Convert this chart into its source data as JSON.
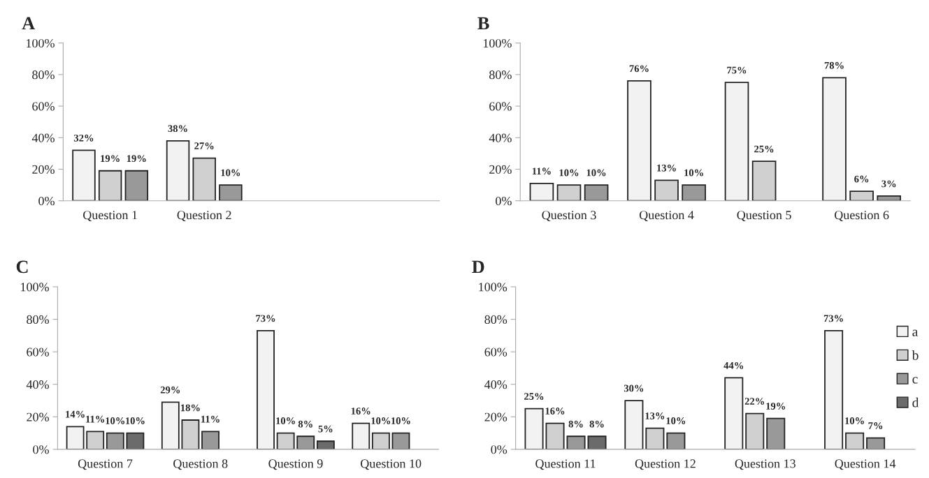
{
  "chart_data": [
    {
      "type": "bar",
      "title": "A",
      "categories": [
        "Question 1",
        "Question 2",
        null,
        null
      ],
      "ylim": [
        0,
        100
      ],
      "yticks": [
        {
          "value": 0,
          "label": "0%"
        },
        {
          "value": 20,
          "label": "20%"
        },
        {
          "value": 40,
          "label": "40%"
        },
        {
          "value": 60,
          "label": "60%"
        },
        {
          "value": 80,
          "label": "80%"
        },
        {
          "value": 100,
          "label": "100%"
        }
      ],
      "grid": false,
      "legend": false,
      "series": [
        {
          "color": "#f2f2f2",
          "values": [
            32,
            38,
            null,
            null
          ],
          "value_labels": [
            "32%",
            "38%",
            null,
            null
          ]
        },
        {
          "color": "#d0d0d0",
          "values": [
            19,
            27,
            null,
            null
          ],
          "value_labels": [
            "19%",
            "27%",
            null,
            null
          ]
        },
        {
          "color": "#999999",
          "values": [
            19,
            10,
            null,
            null
          ],
          "value_labels": [
            "19%",
            "10%",
            null,
            null
          ]
        }
      ]
    },
    {
      "type": "bar",
      "title": "B",
      "categories": [
        "Question 3",
        "Question 4",
        "Question 5",
        "Question 6"
      ],
      "ylim": [
        0,
        100
      ],
      "yticks": [
        {
          "value": 0,
          "label": "0%"
        },
        {
          "value": 20,
          "label": "20%"
        },
        {
          "value": 40,
          "label": "40%"
        },
        {
          "value": 60,
          "label": "60%"
        },
        {
          "value": 80,
          "label": "80%"
        },
        {
          "value": 100,
          "label": "100%"
        }
      ],
      "grid": false,
      "legend": false,
      "series": [
        {
          "color": "#f2f2f2",
          "values": [
            11,
            76,
            75,
            78
          ],
          "value_labels": [
            "11%",
            "76%",
            "75%",
            "78%"
          ]
        },
        {
          "color": "#d0d0d0",
          "values": [
            10,
            13,
            25,
            6
          ],
          "value_labels": [
            "10%",
            "13%",
            "25%",
            "6%"
          ]
        },
        {
          "color": "#999999",
          "values": [
            10,
            10,
            null,
            3
          ],
          "value_labels": [
            "10%",
            "10%",
            null,
            "3%"
          ]
        }
      ]
    },
    {
      "type": "bar",
      "title": "C",
      "categories": [
        "Question 7",
        "Question 8",
        "Question 9",
        "Question 10"
      ],
      "ylim": [
        0,
        100
      ],
      "yticks": [
        {
          "value": 0,
          "label": "0%"
        },
        {
          "value": 20,
          "label": "20%"
        },
        {
          "value": 40,
          "label": "40%"
        },
        {
          "value": 60,
          "label": "60%"
        },
        {
          "value": 80,
          "label": "80%"
        },
        {
          "value": 100,
          "label": "100%"
        }
      ],
      "grid": false,
      "legend": false,
      "series": [
        {
          "color": "#f2f2f2",
          "values": [
            14,
            29,
            73,
            16
          ],
          "value_labels": [
            "14%",
            "29%",
            "73%",
            "16%"
          ]
        },
        {
          "color": "#d0d0d0",
          "values": [
            11,
            18,
            10,
            10
          ],
          "value_labels": [
            "11%",
            "18%",
            "10%",
            "10%"
          ]
        },
        {
          "color": "#999999",
          "values": [
            10,
            11,
            8,
            10
          ],
          "value_labels": [
            "10%",
            "11%",
            "8%",
            "10%"
          ]
        },
        {
          "color": "#6b6b6b",
          "values": [
            10,
            null,
            5,
            null
          ],
          "value_labels": [
            "10%",
            null,
            "5%",
            null
          ]
        }
      ]
    },
    {
      "type": "bar",
      "title": "D",
      "categories": [
        "Question 11",
        "Question 12",
        "Question 13",
        "Question 14"
      ],
      "ylim": [
        0,
        100
      ],
      "yticks": [
        {
          "value": 0,
          "label": "0%"
        },
        {
          "value": 20,
          "label": "20%"
        },
        {
          "value": 40,
          "label": "40%"
        },
        {
          "value": 60,
          "label": "60%"
        },
        {
          "value": 80,
          "label": "80%"
        },
        {
          "value": 100,
          "label": "100%"
        }
      ],
      "grid": false,
      "legend": "right",
      "series": [
        {
          "name": "a",
          "color": "#f2f2f2",
          "values": [
            25,
            30,
            44,
            73
          ],
          "value_labels": [
            "25%",
            "30%",
            "44%",
            "73%"
          ]
        },
        {
          "name": "b",
          "color": "#d0d0d0",
          "values": [
            16,
            13,
            22,
            10
          ],
          "value_labels": [
            "16%",
            "13%",
            "22%",
            "10%"
          ]
        },
        {
          "name": "c",
          "color": "#999999",
          "values": [
            8,
            10,
            19,
            7
          ],
          "value_labels": [
            "8%",
            "10%",
            "19%",
            "7%"
          ]
        },
        {
          "name": "d",
          "color": "#6b6b6b",
          "values": [
            8,
            null,
            null,
            null
          ],
          "value_labels": [
            "8%",
            null,
            null,
            null
          ]
        }
      ]
    }
  ]
}
